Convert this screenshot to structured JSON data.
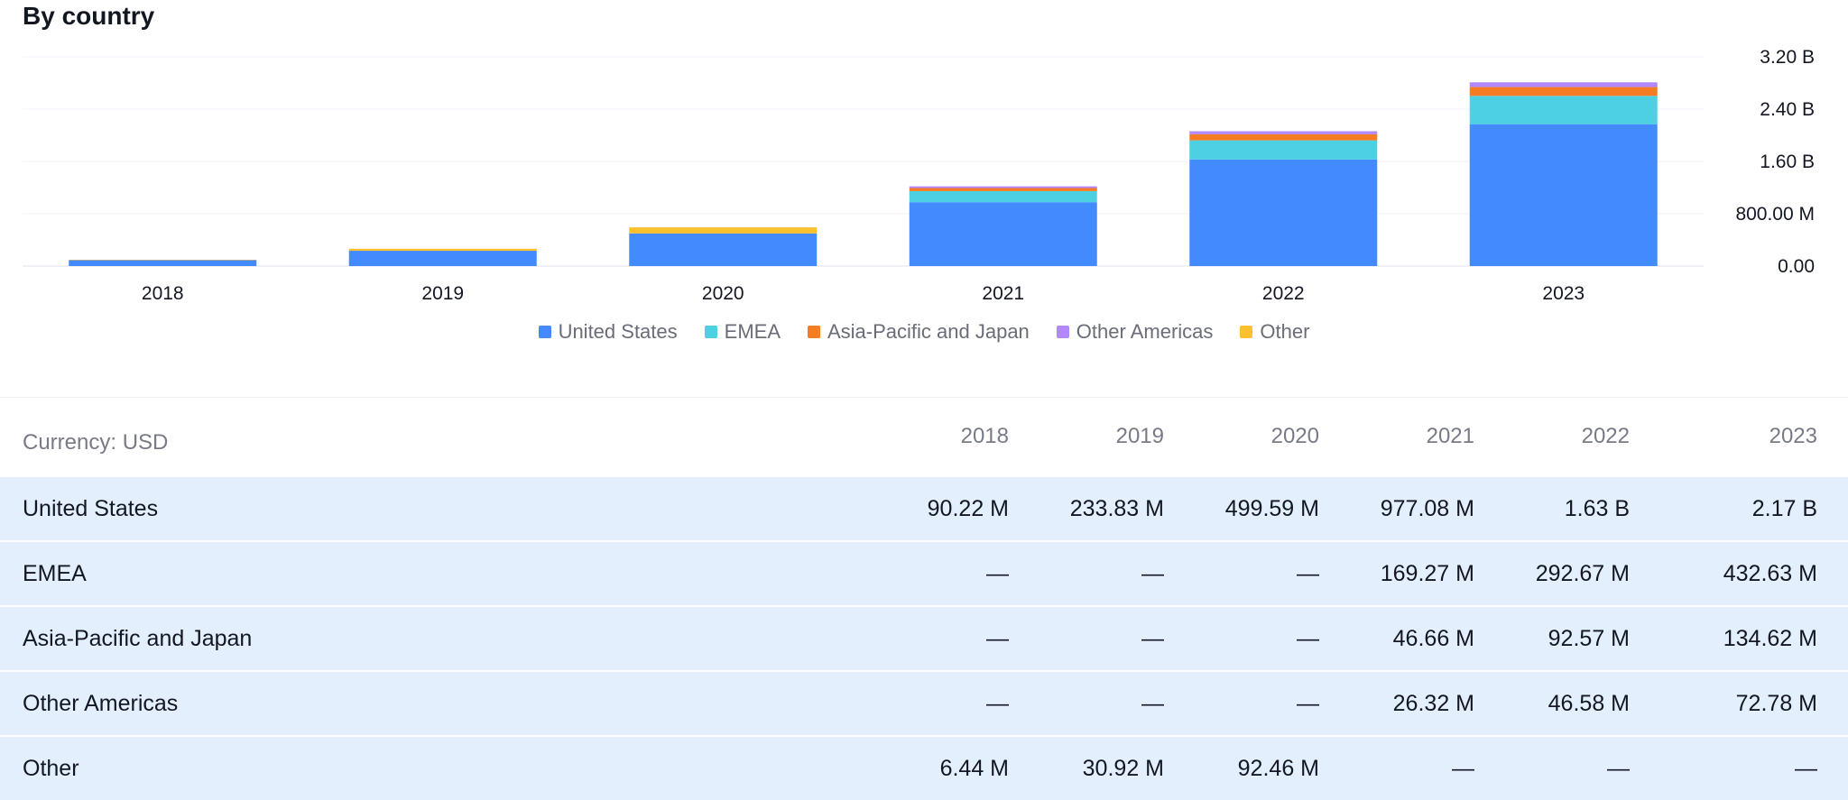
{
  "section_title": "By country",
  "chart_data": {
    "type": "bar",
    "stacked": true,
    "title": "By country",
    "categories": [
      "2018",
      "2019",
      "2020",
      "2021",
      "2022",
      "2023"
    ],
    "series": [
      {
        "name": "United States",
        "color": "#448aff",
        "values": [
          90.22,
          233.83,
          499.59,
          977.08,
          1630,
          2170
        ]
      },
      {
        "name": "EMEA",
        "color": "#4dd0e1",
        "values": [
          0,
          0,
          0,
          169.27,
          292.67,
          432.63
        ]
      },
      {
        "name": "Asia-Pacific and Japan",
        "color": "#f57c22",
        "values": [
          0,
          0,
          0,
          46.66,
          92.57,
          134.62
        ]
      },
      {
        "name": "Other Americas",
        "color": "#b388ff",
        "values": [
          0,
          0,
          0,
          26.32,
          46.58,
          72.78
        ]
      },
      {
        "name": "Other",
        "color": "#fbc02d",
        "values": [
          6.44,
          30.92,
          92.46,
          0,
          0,
          0
        ]
      }
    ],
    "value_unit": "M USD",
    "ylim": [
      0,
      3200
    ],
    "y_ticks": [
      {
        "value": 0,
        "label": "0.00"
      },
      {
        "value": 800,
        "label": "800.00 M"
      },
      {
        "value": 1600,
        "label": "1.60 B"
      },
      {
        "value": 2400,
        "label": "2.40 B"
      },
      {
        "value": 3200,
        "label": "3.20 B"
      }
    ],
    "y_axis_side": "right",
    "grid": true,
    "legend_position": "bottom-center"
  },
  "table": {
    "currency_label": "Currency: USD",
    "years": [
      "2018",
      "2019",
      "2020",
      "2021",
      "2022",
      "2023"
    ],
    "rows": [
      {
        "label": "United States",
        "cells": [
          "90.22 M",
          "233.83 M",
          "499.59 M",
          "977.08 M",
          "1.63 B",
          "2.17 B"
        ]
      },
      {
        "label": "EMEA",
        "cells": [
          "—",
          "—",
          "—",
          "169.27 M",
          "292.67 M",
          "432.63 M"
        ]
      },
      {
        "label": "Asia-Pacific and Japan",
        "cells": [
          "—",
          "—",
          "—",
          "46.66 M",
          "92.57 M",
          "134.62 M"
        ]
      },
      {
        "label": "Other Americas",
        "cells": [
          "—",
          "—",
          "—",
          "26.32 M",
          "46.58 M",
          "72.78 M"
        ]
      },
      {
        "label": "Other",
        "cells": [
          "6.44 M",
          "30.92 M",
          "92.46 M",
          "—",
          "—",
          "—"
        ]
      }
    ]
  }
}
